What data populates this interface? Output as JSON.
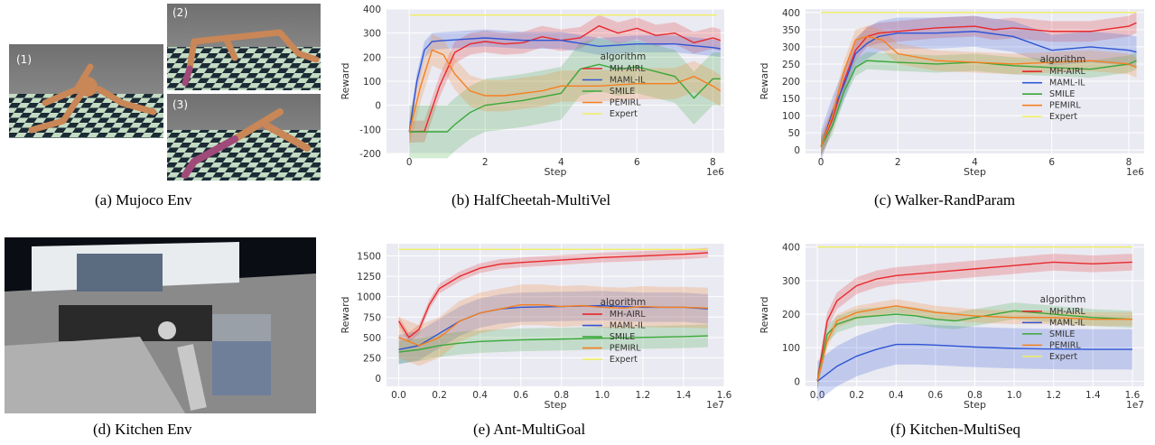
{
  "captions": {
    "a": "(a) Mujoco Env",
    "b": "(b) HalfCheetah-MultiVel",
    "c": "(c) Walker-RandParam",
    "d": "(d) Kitchen Env",
    "e": "(e) Ant-MultiGoal",
    "f": "(f) Kitchen-MultiSeq"
  },
  "mujoco_labels": [
    "(1)",
    "(2)",
    "(3)"
  ],
  "colors": {
    "MH-AIRL": "#e8292b",
    "MAML-IL": "#2f55d4",
    "SMILE": "#3aa83a",
    "PEMIRL": "#f57f20",
    "Expert": "#f0ee62",
    "plot_bg": "#eaeaf2"
  },
  "chart_data": [
    {
      "id": "halfcheetah",
      "type": "line",
      "title": "",
      "xlabel": "Step",
      "ylabel": "Reward",
      "x_multiplier": "1e6",
      "xlim": [
        -0.6,
        8.3
      ],
      "ylim": [
        -200,
        400
      ],
      "xticks": [
        0,
        2,
        4,
        6,
        8
      ],
      "yticks": [
        -200,
        -100,
        0,
        100,
        200,
        300,
        400
      ],
      "grid": true,
      "legend": {
        "title": "algorithm",
        "position": "lower-right"
      },
      "series": [
        {
          "name": "MH-AIRL",
          "x": [
            0,
            0.4,
            0.8,
            1.2,
            1.6,
            2.0,
            2.5,
            3.0,
            3.5,
            4.0,
            4.5,
            5.0,
            5.5,
            6.0,
            6.5,
            7.0,
            7.5,
            8.0,
            8.2
          ],
          "y": [
            -110,
            -108,
            80,
            220,
            255,
            265,
            255,
            260,
            285,
            270,
            280,
            330,
            300,
            320,
            290,
            300,
            260,
            280,
            270
          ],
          "band": 45
        },
        {
          "name": "MAML-IL",
          "x": [
            0,
            0.2,
            0.4,
            0.6,
            0.8,
            1.0,
            1.5,
            2.0,
            3.0,
            4.0,
            5.0,
            6.0,
            7.0,
            8.0,
            8.2
          ],
          "y": [
            -110,
            100,
            230,
            265,
            268,
            270,
            275,
            280,
            270,
            270,
            245,
            255,
            255,
            240,
            235
          ],
          "band": 35
        },
        {
          "name": "SMILE",
          "x": [
            0,
            1.0,
            1.2,
            1.6,
            2.0,
            3.0,
            4.0,
            4.5,
            5.0,
            5.5,
            6.0,
            7.0,
            7.5,
            8.0,
            8.2
          ],
          "y": [
            -110,
            -110,
            -80,
            -30,
            0,
            20,
            50,
            150,
            170,
            150,
            160,
            120,
            30,
            110,
            110
          ],
          "band": 110
        },
        {
          "name": "PEMIRL",
          "x": [
            0,
            0.3,
            0.6,
            0.9,
            1.2,
            1.6,
            2.0,
            2.5,
            3.0,
            3.5,
            4.0,
            5.0,
            6.0,
            7.0,
            7.5,
            8.0,
            8.2
          ],
          "y": [
            -110,
            80,
            230,
            210,
            130,
            60,
            40,
            40,
            50,
            60,
            80,
            80,
            90,
            90,
            120,
            80,
            60
          ],
          "band": 65
        },
        {
          "name": "Expert",
          "x": [
            0,
            8.1
          ],
          "y": [
            375,
            375
          ],
          "band": 0
        }
      ]
    },
    {
      "id": "walker",
      "type": "line",
      "title": "",
      "xlabel": "Step",
      "ylabel": "Reward",
      "x_multiplier": "1e6",
      "xlim": [
        -0.4,
        8.4
      ],
      "ylim": [
        -10,
        410
      ],
      "xticks": [
        0,
        2,
        4,
        6,
        8
      ],
      "yticks": [
        0,
        50,
        100,
        150,
        200,
        250,
        300,
        350,
        400
      ],
      "grid": true,
      "legend": {
        "title": "algorithm",
        "position": "lower-right"
      },
      "series": [
        {
          "name": "MH-AIRL",
          "x": [
            0,
            0.3,
            0.6,
            0.9,
            1.2,
            1.5,
            2.0,
            3.0,
            4.0,
            4.5,
            5.0,
            6.0,
            7.0,
            8.0,
            8.2
          ],
          "y": [
            10,
            90,
            200,
            290,
            330,
            340,
            345,
            355,
            360,
            350,
            355,
            345,
            345,
            360,
            370
          ],
          "band": 30
        },
        {
          "name": "MAML-IL",
          "x": [
            0,
            0.3,
            0.6,
            0.9,
            1.2,
            1.5,
            2.0,
            3.0,
            4.0,
            5.0,
            6.0,
            7.0,
            8.0,
            8.2
          ],
          "y": [
            10,
            110,
            190,
            280,
            310,
            330,
            340,
            340,
            345,
            330,
            290,
            300,
            290,
            285
          ],
          "band": 45
        },
        {
          "name": "SMILE",
          "x": [
            0,
            0.3,
            0.6,
            0.9,
            1.2,
            2.0,
            3.0,
            4.0,
            5.0,
            6.0,
            7.0,
            8.0,
            8.2
          ],
          "y": [
            10,
            70,
            170,
            240,
            260,
            255,
            250,
            255,
            245,
            240,
            235,
            250,
            260
          ],
          "band": 25
        },
        {
          "name": "PEMIRL",
          "x": [
            0,
            0.3,
            0.6,
            0.9,
            1.2,
            1.6,
            2.0,
            3.0,
            4.0,
            5.0,
            6.0,
            7.0,
            8.0,
            8.2
          ],
          "y": [
            10,
            100,
            230,
            320,
            330,
            320,
            280,
            260,
            255,
            250,
            255,
            260,
            250,
            240
          ],
          "band": 30
        },
        {
          "name": "Expert",
          "x": [
            0,
            8.2
          ],
          "y": [
            400,
            400
          ],
          "band": 0
        }
      ]
    },
    {
      "id": "ant",
      "type": "line",
      "title": "",
      "xlabel": "Step",
      "ylabel": "Reward",
      "x_multiplier": "1e7",
      "xlim": [
        -0.06,
        1.6
      ],
      "ylim": [
        -100,
        1650
      ],
      "xticks": [
        0.0,
        0.2,
        0.4,
        0.6,
        0.8,
        1.0,
        1.2,
        1.4,
        1.6
      ],
      "yticks": [
        0,
        250,
        500,
        750,
        1000,
        1250,
        1500
      ],
      "grid": true,
      "legend": {
        "title": "algorithm",
        "position": "lower-right"
      },
      "series": [
        {
          "name": "MH-AIRL",
          "x": [
            0,
            0.05,
            0.1,
            0.15,
            0.2,
            0.3,
            0.4,
            0.5,
            0.6,
            0.8,
            1.0,
            1.2,
            1.4,
            1.52
          ],
          "y": [
            700,
            500,
            600,
            900,
            1100,
            1250,
            1350,
            1400,
            1420,
            1450,
            1480,
            1500,
            1520,
            1540
          ],
          "band": 60
        },
        {
          "name": "MAML-IL",
          "x": [
            0,
            0.1,
            0.2,
            0.3,
            0.4,
            0.5,
            0.6,
            0.8,
            1.0,
            1.2,
            1.4,
            1.52
          ],
          "y": [
            350,
            400,
            550,
            700,
            800,
            850,
            870,
            880,
            890,
            870,
            870,
            850
          ],
          "band": 180
        },
        {
          "name": "SMILE",
          "x": [
            0,
            0.1,
            0.2,
            0.3,
            0.4,
            0.6,
            0.8,
            1.0,
            1.2,
            1.4,
            1.52
          ],
          "y": [
            320,
            350,
            400,
            430,
            450,
            470,
            480,
            490,
            500,
            510,
            520
          ],
          "band": 140
        },
        {
          "name": "PEMIRL",
          "x": [
            0,
            0.1,
            0.2,
            0.3,
            0.4,
            0.5,
            0.6,
            0.7,
            0.8,
            0.9,
            1.0,
            1.1,
            1.2,
            1.3,
            1.4,
            1.52
          ],
          "y": [
            500,
            400,
            500,
            700,
            800,
            850,
            900,
            900,
            880,
            890,
            870,
            860,
            880,
            870,
            870,
            860
          ],
          "band": 250
        },
        {
          "name": "Expert",
          "x": [
            0,
            1.52
          ],
          "y": [
            1580,
            1580
          ],
          "band": 0
        }
      ]
    },
    {
      "id": "kitchen",
      "type": "line",
      "title": "",
      "xlabel": "Step",
      "ylabel": "Reward",
      "x_multiplier": "1e7",
      "xlim": [
        -0.06,
        1.66
      ],
      "ylim": [
        -15,
        410
      ],
      "xticks": [
        0.0,
        0.2,
        0.4,
        0.6,
        0.8,
        1.0,
        1.2,
        1.4,
        1.6
      ],
      "yticks": [
        0,
        100,
        200,
        300,
        400
      ],
      "grid": true,
      "legend": {
        "title": "algorithm",
        "position": "lower-right"
      },
      "series": [
        {
          "name": "MH-AIRL",
          "x": [
            0,
            0.05,
            0.1,
            0.2,
            0.3,
            0.4,
            0.5,
            0.6,
            0.8,
            1.0,
            1.2,
            1.4,
            1.6
          ],
          "y": [
            0,
            180,
            240,
            285,
            305,
            315,
            320,
            325,
            335,
            345,
            355,
            350,
            355
          ],
          "band": 25
        },
        {
          "name": "MAML-IL",
          "x": [
            0,
            0.1,
            0.2,
            0.3,
            0.4,
            0.5,
            0.6,
            0.8,
            1.0,
            1.2,
            1.4,
            1.6
          ],
          "y": [
            0,
            45,
            75,
            95,
            110,
            110,
            108,
            102,
            98,
            96,
            95,
            95
          ],
          "band": 60
        },
        {
          "name": "SMILE",
          "x": [
            0,
            0.05,
            0.1,
            0.2,
            0.3,
            0.4,
            0.5,
            0.6,
            0.7,
            0.8,
            1.0,
            1.2,
            1.4,
            1.6
          ],
          "y": [
            0,
            140,
            170,
            190,
            195,
            200,
            195,
            185,
            180,
            190,
            210,
            200,
            190,
            185
          ],
          "band": 25
        },
        {
          "name": "PEMIRL",
          "x": [
            0,
            0.05,
            0.1,
            0.2,
            0.3,
            0.4,
            0.5,
            0.6,
            0.8,
            1.0,
            1.2,
            1.4,
            1.6
          ],
          "y": [
            0,
            120,
            180,
            205,
            215,
            225,
            215,
            205,
            195,
            190,
            190,
            185,
            185
          ],
          "band": 20
        },
        {
          "name": "Expert",
          "x": [
            0,
            1.6
          ],
          "y": [
            400,
            400
          ],
          "band": 0
        }
      ]
    }
  ]
}
